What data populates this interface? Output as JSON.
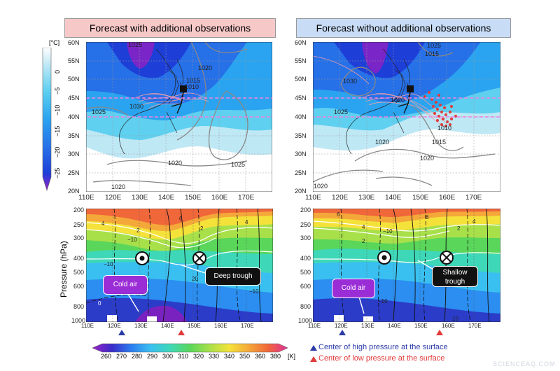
{
  "titles": {
    "left": "Forecast with additional observations",
    "right": "Forecast without additional observations"
  },
  "top_colorbar": {
    "unit": "[°C]",
    "labels": [
      "0",
      "−5",
      "−10",
      "−15",
      "−20",
      "−25"
    ]
  },
  "bottom_colorbar": {
    "unit": "[K]",
    "labels": [
      "260",
      "270",
      "280",
      "290",
      "300",
      "310",
      "320",
      "330",
      "340",
      "350",
      "360",
      "380"
    ]
  },
  "map_axes": {
    "lat_labels": [
      "60N",
      "55N",
      "50N",
      "45N",
      "40N",
      "35N",
      "30N",
      "25N",
      "20N"
    ],
    "lon_labels": [
      "110E",
      "120E",
      "130E",
      "140E",
      "150E",
      "160E",
      "170E"
    ]
  },
  "section_axes": {
    "ylabel": "Pressure (hPa)",
    "p_labels": [
      "200",
      "250",
      "300",
      "400",
      "500",
      "600",
      "800",
      "1000"
    ],
    "lon_labels": [
      "110E",
      "120E",
      "130E",
      "140E",
      "150E",
      "160E",
      "170E"
    ]
  },
  "contours_left": [
    "1025",
    "1030",
    "1020",
    "1015",
    "1010",
    "1025",
    "1020",
    "1025",
    "1020"
  ],
  "contours_right": [
    "1025",
    "1015",
    "1030",
    "1020",
    "1025",
    "1020",
    "1010",
    "1015",
    "1020",
    "1020"
  ],
  "section_labels_left": [
    "4",
    "2",
    "−10",
    "6",
    "2",
    "4",
    "0",
    "20",
    "−10",
    "−10"
  ],
  "section_labels_right": [
    "6",
    "4",
    "−10",
    "2",
    "4",
    "2",
    "6",
    "−10",
    "10"
  ],
  "annotations": {
    "cold_air_left": "Cold air",
    "cold_air_right": "Cold air",
    "deep_trough": "Deep trough",
    "shallow_trough": "Shallow trough"
  },
  "legend": {
    "high": "Center of high pressure at the surface",
    "low": "Center of low pressure at the surface",
    "high_color": "#2b3aa8",
    "low_color": "#e03a3a"
  },
  "watermark": "SCIENCEAQ.COM"
}
